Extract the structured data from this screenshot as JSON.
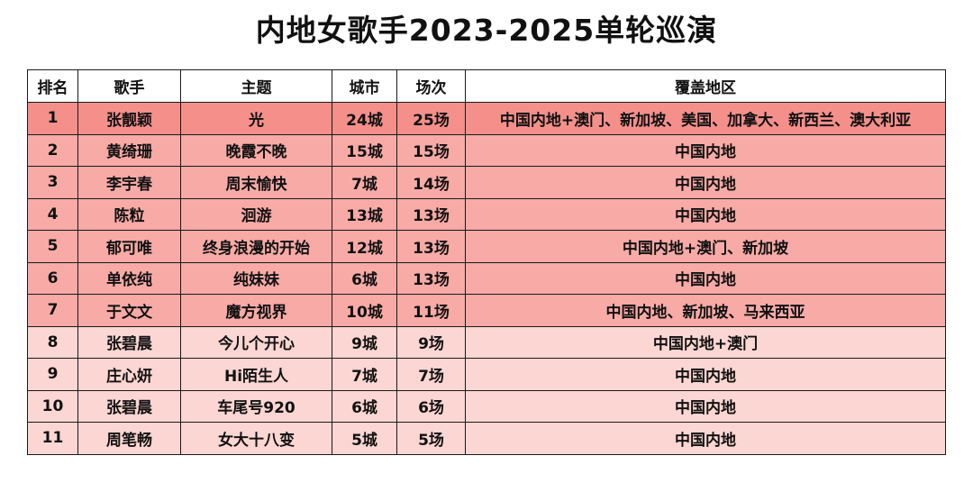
{
  "title": "内地女歌手2023-2025单轮巡演",
  "headers": [
    "排名",
    "歌手",
    "主题",
    "城市",
    "场次",
    "覆盖地区"
  ],
  "rows": [
    {
      "rank": "1",
      "singer": "张靓颖",
      "theme": "光",
      "cities": "24城",
      "shows": "25场",
      "region": "中国内地+澳门、新加坡、美国、加拿大、新西兰、澳大利亚",
      "bg": "#f48f8a"
    },
    {
      "rank": "2",
      "singer": "黄绮珊",
      "theme": "晚霞不晚",
      "cities": "15城",
      "shows": "15场",
      "region": "中国内地",
      "bg": "#f7aaa6"
    },
    {
      "rank": "3",
      "singer": "李宇春",
      "theme": "周末愉快",
      "cities": "7城",
      "shows": "14场",
      "region": "中国内地",
      "bg": "#f7aaa6"
    },
    {
      "rank": "4",
      "singer": "陈粒",
      "theme": "洄游",
      "cities": "13城",
      "shows": "13场",
      "region": "中国内地",
      "bg": "#f7aaa6"
    },
    {
      "rank": "5",
      "singer": "郁可唯",
      "theme": "终身浪漫的开始",
      "cities": "12城",
      "shows": "13场",
      "region": "中国内地+澳门、新加坡",
      "bg": "#f7aaa6"
    },
    {
      "rank": "6",
      "singer": "单依纯",
      "theme": "纯妹妹",
      "cities": "6城",
      "shows": "13场",
      "region": "中国内地",
      "bg": "#f7aaa6"
    },
    {
      "rank": "7",
      "singer": "于文文",
      "theme": "魔方视界",
      "cities": "10城",
      "shows": "11场",
      "region": "中国内地、新加坡、马来西亚",
      "bg": "#f7aaa6"
    },
    {
      "rank": "8",
      "singer": "张碧晨",
      "theme": "今儿个开心",
      "cities": "9城",
      "shows": "9场",
      "region": "中国内地+澳门",
      "bg": "#fbd6d3"
    },
    {
      "rank": "9",
      "singer": "庄心妍",
      "theme": "Hi陌生人",
      "cities": "7城",
      "shows": "7场",
      "region": "中国内地",
      "bg": "#fbd6d3"
    },
    {
      "rank": "10",
      "singer": "张碧晨",
      "theme": "车尾号920",
      "cities": "6城",
      "shows": "6场",
      "region": "中国内地",
      "bg": "#fbd6d3"
    },
    {
      "rank": "11",
      "singer": "周笔畅",
      "theme": "女大十八变",
      "cities": "5城",
      "shows": "5场",
      "region": "中国内地",
      "bg": "#fbd6d3"
    }
  ]
}
